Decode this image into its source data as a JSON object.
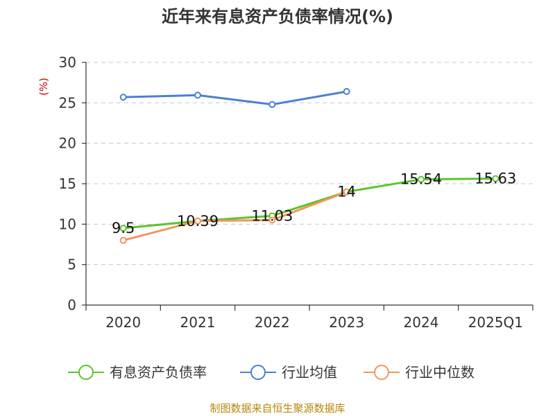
{
  "chart_data": {
    "type": "line",
    "title": "近年来有息资产负债率情况(%)",
    "ylabel": "(%)",
    "categories": [
      "2020",
      "2021",
      "2022",
      "2023",
      "2024",
      "2025Q1"
    ],
    "ylim": [
      0,
      30
    ],
    "yticks": [
      0,
      5,
      10,
      15,
      20,
      25,
      30
    ],
    "grid": true,
    "legend_position": "bottom",
    "series": [
      {
        "name": "有息资产负债率",
        "color": "#5ac52b",
        "values": [
          9.5,
          10.39,
          11.03,
          14,
          15.54,
          15.63
        ],
        "labels": [
          "9.5",
          "10.39",
          "11.03",
          "14",
          "15.54",
          "15.63"
        ]
      },
      {
        "name": "行业均值",
        "color": "#4a7fd6",
        "values": [
          25.7,
          25.95,
          24.8,
          26.4,
          null,
          null
        ]
      },
      {
        "name": "行业中位数",
        "color": "#f2955a",
        "values": [
          8.0,
          10.4,
          10.5,
          14.0,
          null,
          null
        ]
      }
    ],
    "source": "制图数据来自恒生聚源数据库"
  }
}
